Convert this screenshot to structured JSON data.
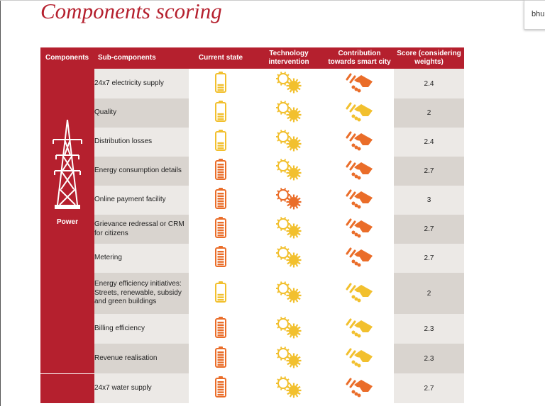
{
  "title": "Components scoring",
  "popup_text": "bhu",
  "headers": {
    "components": "Components",
    "sub_components": "Sub-components",
    "current_state": "Current state",
    "technology": "Technology\nintervention",
    "contribution": "Contribution\ntowards smart city",
    "score": "Score (considering\nweights)"
  },
  "components": [
    {
      "name": "Power",
      "icon": "power-tower-icon"
    },
    {
      "name": "",
      "icon": ""
    }
  ],
  "colors": {
    "brand_red": "#b5202e",
    "yellow": "#f2c02e",
    "orange": "#ea6d29",
    "row_light": "#ece9e6",
    "row_dark": "#d9d4cf"
  },
  "rows": [
    {
      "sub": "24x7 electricity supply",
      "battery": "yellow",
      "gear": "yellow",
      "hands": "orange",
      "score": "2.4"
    },
    {
      "sub": "Quality",
      "battery": "yellow",
      "gear": "yellow",
      "hands": "yellow",
      "score": "2"
    },
    {
      "sub": "Distribution losses",
      "battery": "yellow",
      "gear": "yellow",
      "hands": "orange",
      "score": "2.4"
    },
    {
      "sub": "Energy consumption details",
      "battery": "orange",
      "gear": "yellow",
      "hands": "orange",
      "score": "2.7"
    },
    {
      "sub": "Online payment facility",
      "battery": "orange",
      "gear": "orange",
      "hands": "orange",
      "score": "3"
    },
    {
      "sub": "Grievance redressal or CRM for citizens",
      "battery": "orange",
      "gear": "yellow",
      "hands": "orange",
      "score": "2.7"
    },
    {
      "sub": "Metering",
      "battery": "orange",
      "gear": "yellow",
      "hands": "orange",
      "score": "2.7"
    },
    {
      "sub": "Energy efficiency initiatives: Streets, renewable, subsidy and green buildings",
      "battery": "yellow",
      "gear": "yellow",
      "hands": "yellow",
      "score": "2"
    },
    {
      "sub": "Billing efficiency",
      "battery": "orange",
      "gear": "yellow",
      "hands": "yellow",
      "score": "2.3"
    },
    {
      "sub": "Revenue realisation",
      "battery": "orange",
      "gear": "yellow",
      "hands": "yellow",
      "score": "2.3"
    },
    {
      "sub": "24x7 water supply",
      "battery": "orange",
      "gear": "yellow",
      "hands": "orange",
      "score": "2.7"
    }
  ]
}
